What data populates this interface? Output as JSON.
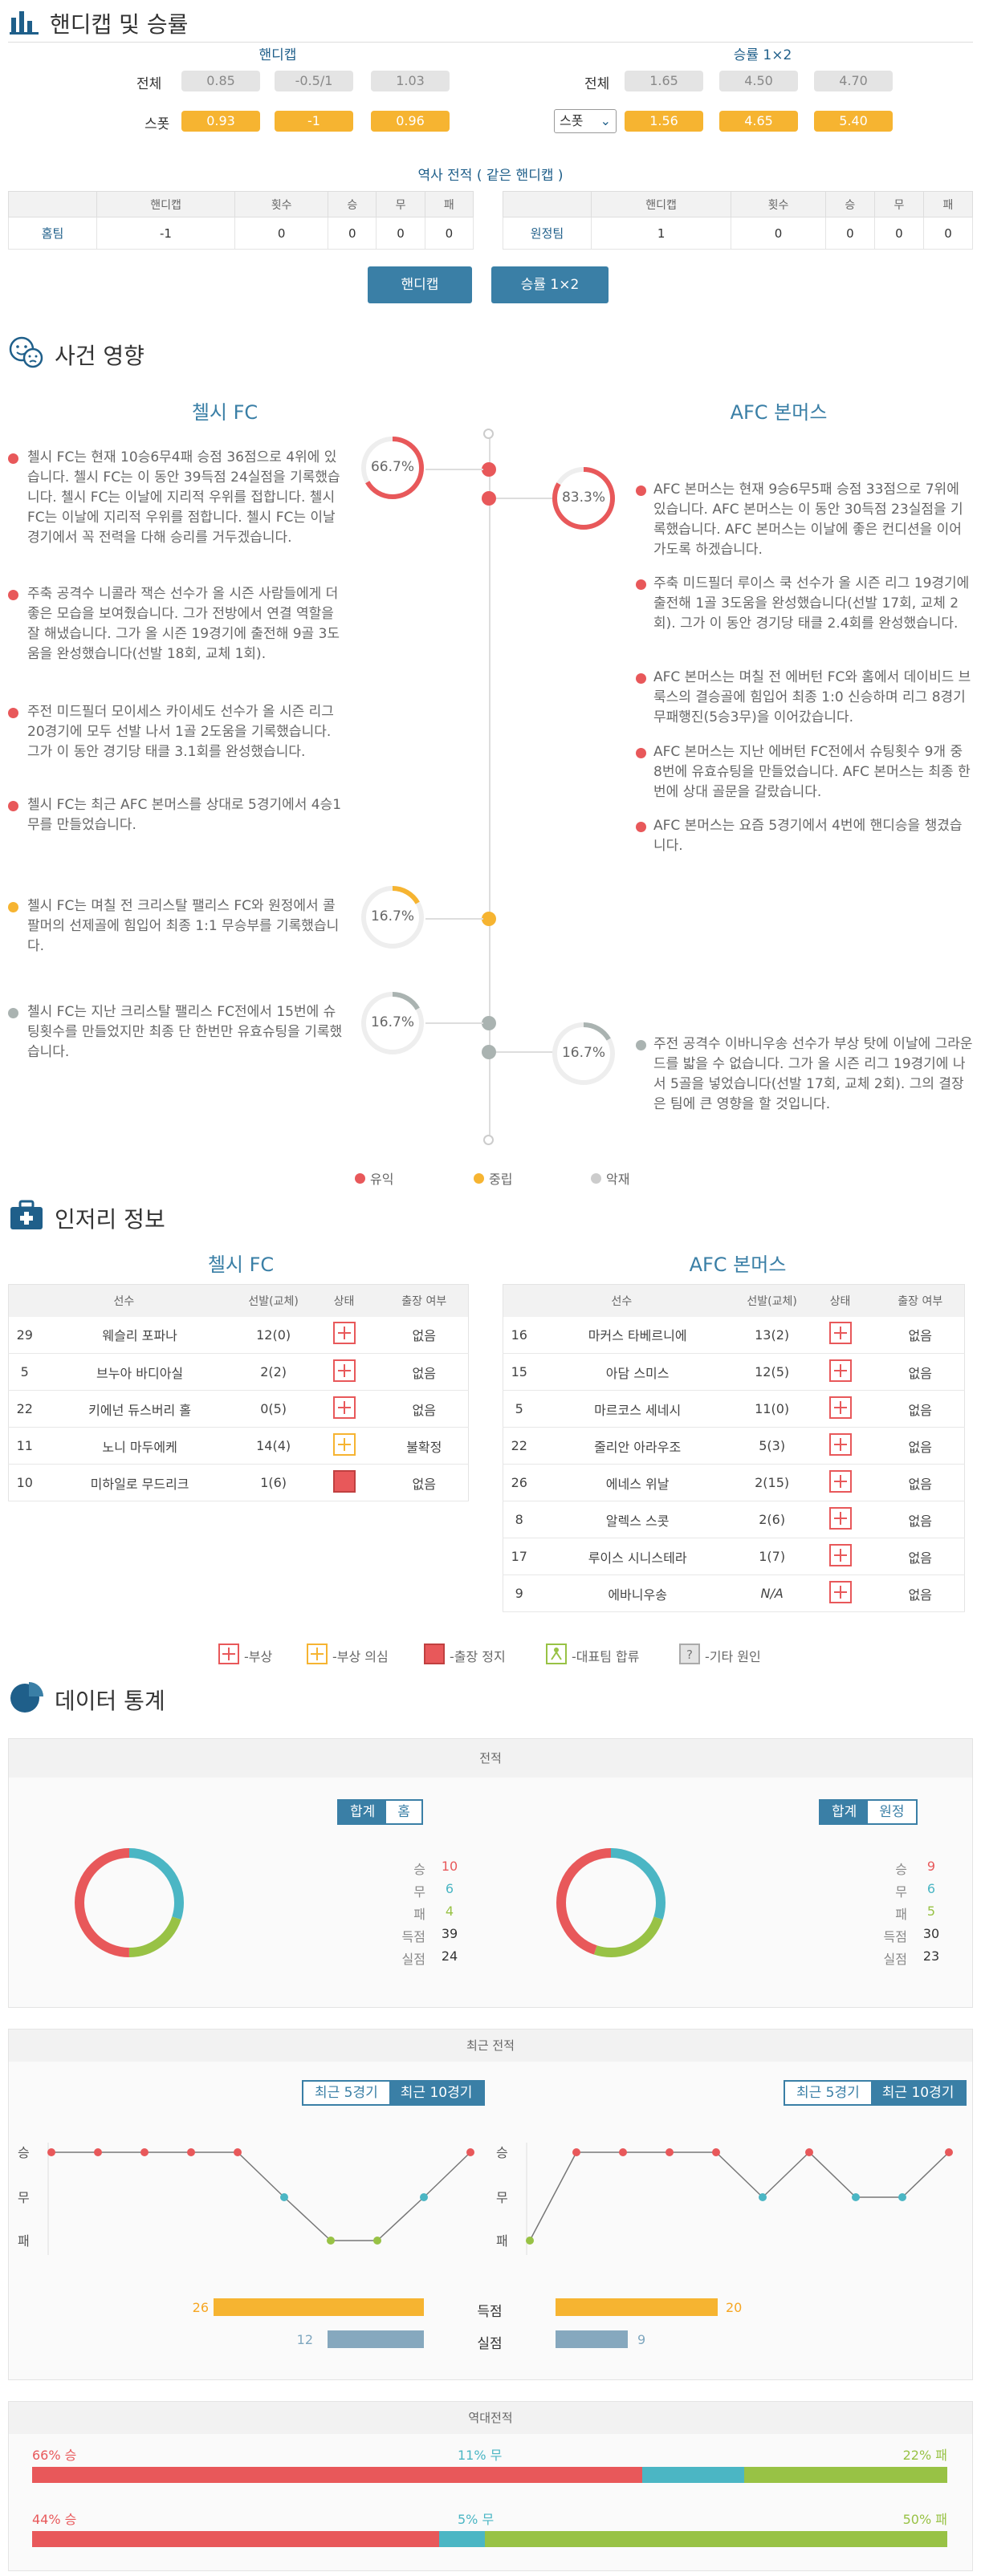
{
  "handicap_section": {
    "title": "핸디캡 및 승률",
    "handicap_head": "핸디캡",
    "odds_head": "승률 1×2",
    "row_total": "전체",
    "row_spot": "스폿",
    "hc_total": [
      "0.85",
      "-0.5/1",
      "1.03"
    ],
    "hc_spot": [
      "0.93",
      "-1",
      "0.96"
    ],
    "odds_total": [
      "1.65",
      "4.50",
      "4.70"
    ],
    "odds_spot": [
      "1.56",
      "4.65",
      "5.40"
    ],
    "spot_select": "스폿"
  },
  "history": {
    "title": "역사 전적 ( 같은 핸디캡 )",
    "cols": [
      "핸디캡",
      "횟수",
      "승",
      "무",
      "패"
    ],
    "home": {
      "team": "홈팀",
      "vals": [
        "-1",
        "0",
        "0",
        "0",
        "0"
      ]
    },
    "away": {
      "team": "원정팀",
      "vals": [
        "1",
        "0",
        "0",
        "0",
        "0"
      ]
    },
    "btn_handicap": "핸디캡",
    "btn_odds": "승률 1×2"
  },
  "impact": {
    "title": "사건 영향",
    "home": "첼시 FC",
    "away": "AFC 본머스",
    "c1": "66.7%",
    "c2": "83.3%",
    "c3": "16.7%",
    "c4": "16.7%",
    "c5": "16.7%",
    "home_pos": [
      "첼시 FC는 현재 10승6무4패 승점 36점으로 4위에 있습니다. 첼시 FC는 이 동안 39득점 24실점을 기록했습니다. 첼시 FC는 이날에 지리적 우위를 접합니다. 첼시 FC는 이날에 지리적 우위를 점합니다. 첼시 FC는 이날 경기에서 꼭 전력을 다해 승리를 거두겠습니다.",
      "주축 공격수 니콜라 잭슨 선수가 올 시즌 사람들에게 더 좋은 모습을 보여줬습니다. 그가 전방에서 연결 역할을 잘 해냈습니다. 그가 올 시즌 19경기에 출전해 9골 3도움을 완성했습니다(선발 18회, 교체 1회).",
      "주전 미드필더 모이세스 카이세도 선수가 올 시즌 리그 20경기에 모두 선발 나서 1골 2도움을 기록했습니다. 그가 이 동안 경기당 태클 3.1회를 완성했습니다.",
      "첼시 FC는 최근 AFC 본머스를 상대로 5경기에서 4승1무를 만들었습니다."
    ],
    "home_neu": "첼시 FC는 며칠 전 크리스탈 팰리스 FC와 원정에서 콜 팔머의 선제골에 힘입어 최종 1:1 무승부를 기록했습니다.",
    "home_neg": "첼시 FC는 지난 크리스탈 팰리스 FC전에서 15번에 슈팅횟수를 만들었지만 최종 단 한번만 유효슈팅을 기록했습니다.",
    "away_pos": [
      "AFC 본머스는 현재 9승6무5패 승점 33점으로 7위에 있습니다. AFC 본머스는 이 동안 30득점 23실점을 기록했습니다. AFC 본머스는 이날에 좋은 컨디션을 이어가도록 하겠습니다.",
      "주축 미드필더 루이스 쿡 선수가 올 시즌 리그 19경기에 출전해 1골 3도움을 완성했습니다(선발 17회, 교체 2회). 그가 이 동안 경기당 태클 2.4회를 완성했습니다.",
      "AFC 본머스는 며칠 전 에버턴 FC와 홈에서 데이비드 브룩스의 결승골에 힘입어 최종 1:0 신승하며 리그 8경기 무패행진(5승3무)을 이어갔습니다.",
      "AFC 본머스는 지난 에버턴 FC전에서 슈팅횟수 9개 중 8번에 유효슈팅을 만들었습니다. AFC 본머스는 최종 한번에 상대 골문을 갈랐습니다.",
      "AFC 본머스는 요즘 5경기에서 4번에 핸디승을 챙겼습니다."
    ],
    "away_neg": "주전 공격수 이바니우송 선수가 부상 탓에 이날에 그라운드를 밟을 수 없습니다. 그가 올 시즌 리그 19경기에 나서 5골을 넣었습니다(선발 17회, 교체 2회). 그의 결장은 팀에 큰 영향을 할 것입니다.",
    "legend": [
      "유익",
      "중립",
      "악재"
    ],
    "colors": {
      "good": "#e8585a",
      "neutral": "#f6b431",
      "bad": "#aab3b1"
    }
  },
  "injury": {
    "title": "인저리 정보",
    "home": "첼시 FC",
    "away": "AFC 본머스",
    "cols": [
      "선수",
      "선발(교체)",
      "상태",
      "출장 여부"
    ],
    "home_rows": [
      [
        "29",
        "웨슬리 포파나",
        "12(0)",
        "injury",
        "없음"
      ],
      [
        "5",
        "브누아 바디아실",
        "2(2)",
        "injury",
        "없음"
      ],
      [
        "22",
        "키에넌 듀스버리 홀",
        "0(5)",
        "injury",
        "없음"
      ],
      [
        "11",
        "노니 마두에케",
        "14(4)",
        "doubt",
        "불확정"
      ],
      [
        "10",
        "미하일로 무드리크",
        "1(6)",
        "suspend",
        "없음"
      ]
    ],
    "away_rows": [
      [
        "16",
        "마커스 타베르니에",
        "13(2)",
        "injury",
        "없음"
      ],
      [
        "15",
        "아담 스미스",
        "12(5)",
        "injury",
        "없음"
      ],
      [
        "5",
        "마르코스 세네시",
        "11(0)",
        "injury",
        "없음"
      ],
      [
        "22",
        "줄리안 아라우조",
        "5(3)",
        "injury",
        "없음"
      ],
      [
        "26",
        "에네스 위날",
        "2(15)",
        "injury",
        "없음"
      ],
      [
        "8",
        "알렉스 스콧",
        "2(6)",
        "injury",
        "없음"
      ],
      [
        "17",
        "루이스 시니스테라",
        "1(7)",
        "injury",
        "없음"
      ],
      [
        "9",
        "에바니우송",
        "N/A",
        "injury",
        "없음"
      ]
    ],
    "legend": [
      "-부상",
      "-부상 의심",
      "-출장 정지",
      "-대표팀 합류",
      "-기타 원인"
    ]
  },
  "stats": {
    "title": "데이터 통계",
    "record_head": "전적",
    "home_tabs": [
      "합계",
      "홈"
    ],
    "away_tabs": [
      "합계",
      "원정"
    ],
    "labels": [
      "승",
      "무",
      "패",
      "득점",
      "실점"
    ],
    "home_vals": [
      "10",
      "6",
      "4",
      "39",
      "24"
    ],
    "away_vals": [
      "9",
      "6",
      "5",
      "30",
      "23"
    ],
    "recent_head": "최근 전적",
    "recent_tabs": [
      "최근 5경기",
      "최근 10경기"
    ],
    "y_labels": [
      "승",
      "무",
      "패"
    ],
    "home_form": [
      "W",
      "W",
      "W",
      "W",
      "W",
      "D",
      "L",
      "L",
      "D",
      "W"
    ],
    "away_form": [
      "L",
      "W",
      "W",
      "W",
      "W",
      "D",
      "W",
      "D",
      "D",
      "W"
    ],
    "goals_label": "득점",
    "conceded_label": "실점",
    "home_goals": "26",
    "home_conceded": "12",
    "away_goals": "20",
    "away_conceded": "9",
    "h2h_head": "역대전적",
    "h2h": [
      {
        "win": "66% 승",
        "draw": "11% 무",
        "lose": "22% 패",
        "w": 66,
        "d": 11,
        "l": 22
      },
      {
        "win": "44% 승",
        "draw": "5% 무",
        "lose": "50% 패",
        "w": 44,
        "d": 5,
        "l": 50
      }
    ],
    "colors": {
      "win": "#e8585a",
      "draw": "#4bb6c4",
      "lose": "#98c245"
    }
  }
}
